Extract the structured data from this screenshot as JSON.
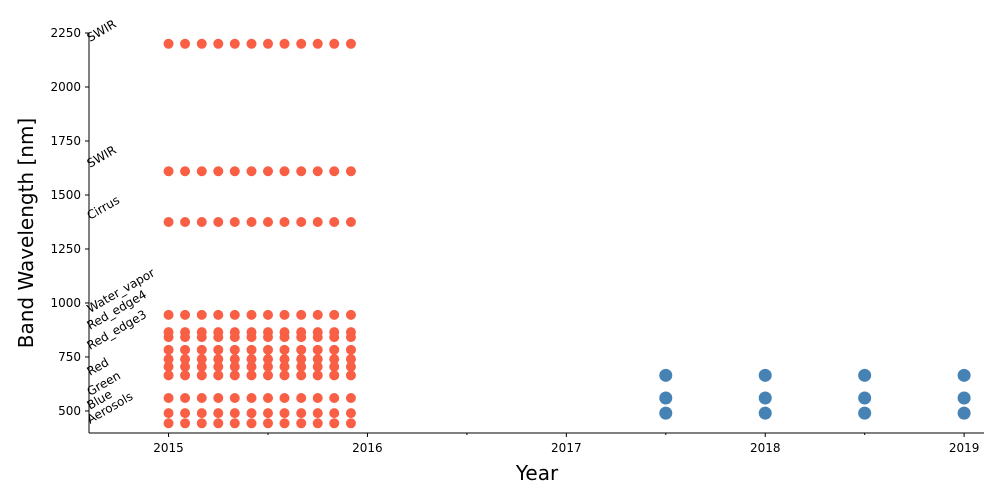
{
  "chart_data": {
    "type": "scatter",
    "xlabel": "Year",
    "ylabel": "Band Wavelength [nm]",
    "xlim": [
      2014.6,
      2019.1
    ],
    "xticks": [
      2015,
      2016,
      2017,
      2018,
      2019
    ],
    "xminorticks": [
      2015.5,
      2016.5,
      2017.5,
      2018.5
    ],
    "ylim": [
      398,
      2250
    ],
    "yticks": [
      500,
      750,
      1000,
      1250,
      1500,
      1750,
      2000,
      2250
    ],
    "annotations": [
      {
        "text": "SWIR",
        "x": 2014.6,
        "y": 2208
      },
      {
        "text": "SWIR",
        "x": 2014.6,
        "y": 1625
      },
      {
        "text": "Cirrus",
        "x": 2014.6,
        "y": 1384
      },
      {
        "text": "Water_vapor",
        "x": 2014.6,
        "y": 953
      },
      {
        "text": "Red_edge4",
        "x": 2014.6,
        "y": 875
      },
      {
        "text": "Red_edge3",
        "x": 2014.6,
        "y": 782
      },
      {
        "text": "Red",
        "x": 2014.6,
        "y": 662
      },
      {
        "text": "Green",
        "x": 2014.6,
        "y": 569
      },
      {
        "text": "Blue",
        "x": 2014.6,
        "y": 505
      },
      {
        "text": "Aerosols",
        "x": 2014.6,
        "y": 440
      }
    ],
    "series": [
      {
        "color": "#f95f45",
        "x": [
          2015,
          2015.083,
          2015.167,
          2015.25,
          2015.333,
          2015.417,
          2015.5,
          2015.583,
          2015.667,
          2015.75,
          2015.833,
          2015.917
        ],
        "values": [
          443,
          443,
          443,
          443,
          443,
          443,
          443,
          443,
          443,
          443,
          443,
          443
        ]
      },
      {
        "color": "#f95f45",
        "x": [
          2015,
          2015.083,
          2015.167,
          2015.25,
          2015.333,
          2015.417,
          2015.5,
          2015.583,
          2015.667,
          2015.75,
          2015.833,
          2015.917
        ],
        "values": [
          490,
          490,
          490,
          490,
          490,
          490,
          490,
          490,
          490,
          490,
          490,
          490
        ]
      },
      {
        "color": "#f95f45",
        "x": [
          2015,
          2015.083,
          2015.167,
          2015.25,
          2015.333,
          2015.417,
          2015.5,
          2015.583,
          2015.667,
          2015.75,
          2015.833,
          2015.917
        ],
        "values": [
          560,
          560,
          560,
          560,
          560,
          560,
          560,
          560,
          560,
          560,
          560,
          560
        ]
      },
      {
        "color": "#f95f45",
        "x": [
          2015,
          2015.083,
          2015.167,
          2015.25,
          2015.333,
          2015.417,
          2015.5,
          2015.583,
          2015.667,
          2015.75,
          2015.833,
          2015.917
        ],
        "values": [
          665,
          665,
          665,
          665,
          665,
          665,
          665,
          665,
          665,
          665,
          665,
          665
        ]
      },
      {
        "color": "#f95f45",
        "x": [
          2015,
          2015.083,
          2015.167,
          2015.25,
          2015.333,
          2015.417,
          2015.5,
          2015.583,
          2015.667,
          2015.75,
          2015.833,
          2015.917
        ],
        "values": [
          705,
          705,
          705,
          705,
          705,
          705,
          705,
          705,
          705,
          705,
          705,
          705
        ]
      },
      {
        "color": "#f95f45",
        "x": [
          2015,
          2015.083,
          2015.167,
          2015.25,
          2015.333,
          2015.417,
          2015.5,
          2015.583,
          2015.667,
          2015.75,
          2015.833,
          2015.917
        ],
        "values": [
          740,
          740,
          740,
          740,
          740,
          740,
          740,
          740,
          740,
          740,
          740,
          740
        ]
      },
      {
        "color": "#f95f45",
        "x": [
          2015,
          2015.083,
          2015.167,
          2015.25,
          2015.333,
          2015.417,
          2015.5,
          2015.583,
          2015.667,
          2015.75,
          2015.833,
          2015.917
        ],
        "values": [
          783,
          783,
          783,
          783,
          783,
          783,
          783,
          783,
          783,
          783,
          783,
          783
        ]
      },
      {
        "color": "#f95f45",
        "x": [
          2015,
          2015.083,
          2015.167,
          2015.25,
          2015.333,
          2015.417,
          2015.5,
          2015.583,
          2015.667,
          2015.75,
          2015.833,
          2015.917
        ],
        "values": [
          842,
          842,
          842,
          842,
          842,
          842,
          842,
          842,
          842,
          842,
          842,
          842
        ]
      },
      {
        "color": "#f95f45",
        "x": [
          2015,
          2015.083,
          2015.167,
          2015.25,
          2015.333,
          2015.417,
          2015.5,
          2015.583,
          2015.667,
          2015.75,
          2015.833,
          2015.917
        ],
        "values": [
          865,
          865,
          865,
          865,
          865,
          865,
          865,
          865,
          865,
          865,
          865,
          865
        ]
      },
      {
        "color": "#f95f45",
        "x": [
          2015,
          2015.083,
          2015.167,
          2015.25,
          2015.333,
          2015.417,
          2015.5,
          2015.583,
          2015.667,
          2015.75,
          2015.833,
          2015.917
        ],
        "values": [
          945,
          945,
          945,
          945,
          945,
          945,
          945,
          945,
          945,
          945,
          945,
          945
        ]
      },
      {
        "color": "#f95f45",
        "x": [
          2015,
          2015.083,
          2015.167,
          2015.25,
          2015.333,
          2015.417,
          2015.5,
          2015.583,
          2015.667,
          2015.75,
          2015.833,
          2015.917
        ],
        "values": [
          1375,
          1375,
          1375,
          1375,
          1375,
          1375,
          1375,
          1375,
          1375,
          1375,
          1375,
          1375
        ]
      },
      {
        "color": "#f95f45",
        "x": [
          2015,
          2015.083,
          2015.167,
          2015.25,
          2015.333,
          2015.417,
          2015.5,
          2015.583,
          2015.667,
          2015.75,
          2015.833,
          2015.917
        ],
        "values": [
          1610,
          1610,
          1610,
          1610,
          1610,
          1610,
          1610,
          1610,
          1610,
          1610,
          1610,
          1610
        ]
      },
      {
        "color": "#f95f45",
        "x": [
          2015,
          2015.083,
          2015.167,
          2015.25,
          2015.333,
          2015.417,
          2015.5,
          2015.583,
          2015.667,
          2015.75,
          2015.833,
          2015.917
        ],
        "values": [
          2200,
          2200,
          2200,
          2200,
          2200,
          2200,
          2200,
          2200,
          2200,
          2200,
          2200,
          2200
        ]
      },
      {
        "color": "#4682b4",
        "x": [
          2017.5,
          2018,
          2018.5,
          2019
        ],
        "values": [
          490,
          490,
          490,
          490
        ]
      },
      {
        "color": "#4682b4",
        "x": [
          2017.5,
          2018,
          2018.5,
          2019
        ],
        "values": [
          560,
          560,
          560,
          560
        ]
      },
      {
        "color": "#4682b4",
        "x": [
          2017.5,
          2018,
          2018.5,
          2019
        ],
        "values": [
          665,
          665,
          665,
          665
        ]
      }
    ]
  }
}
